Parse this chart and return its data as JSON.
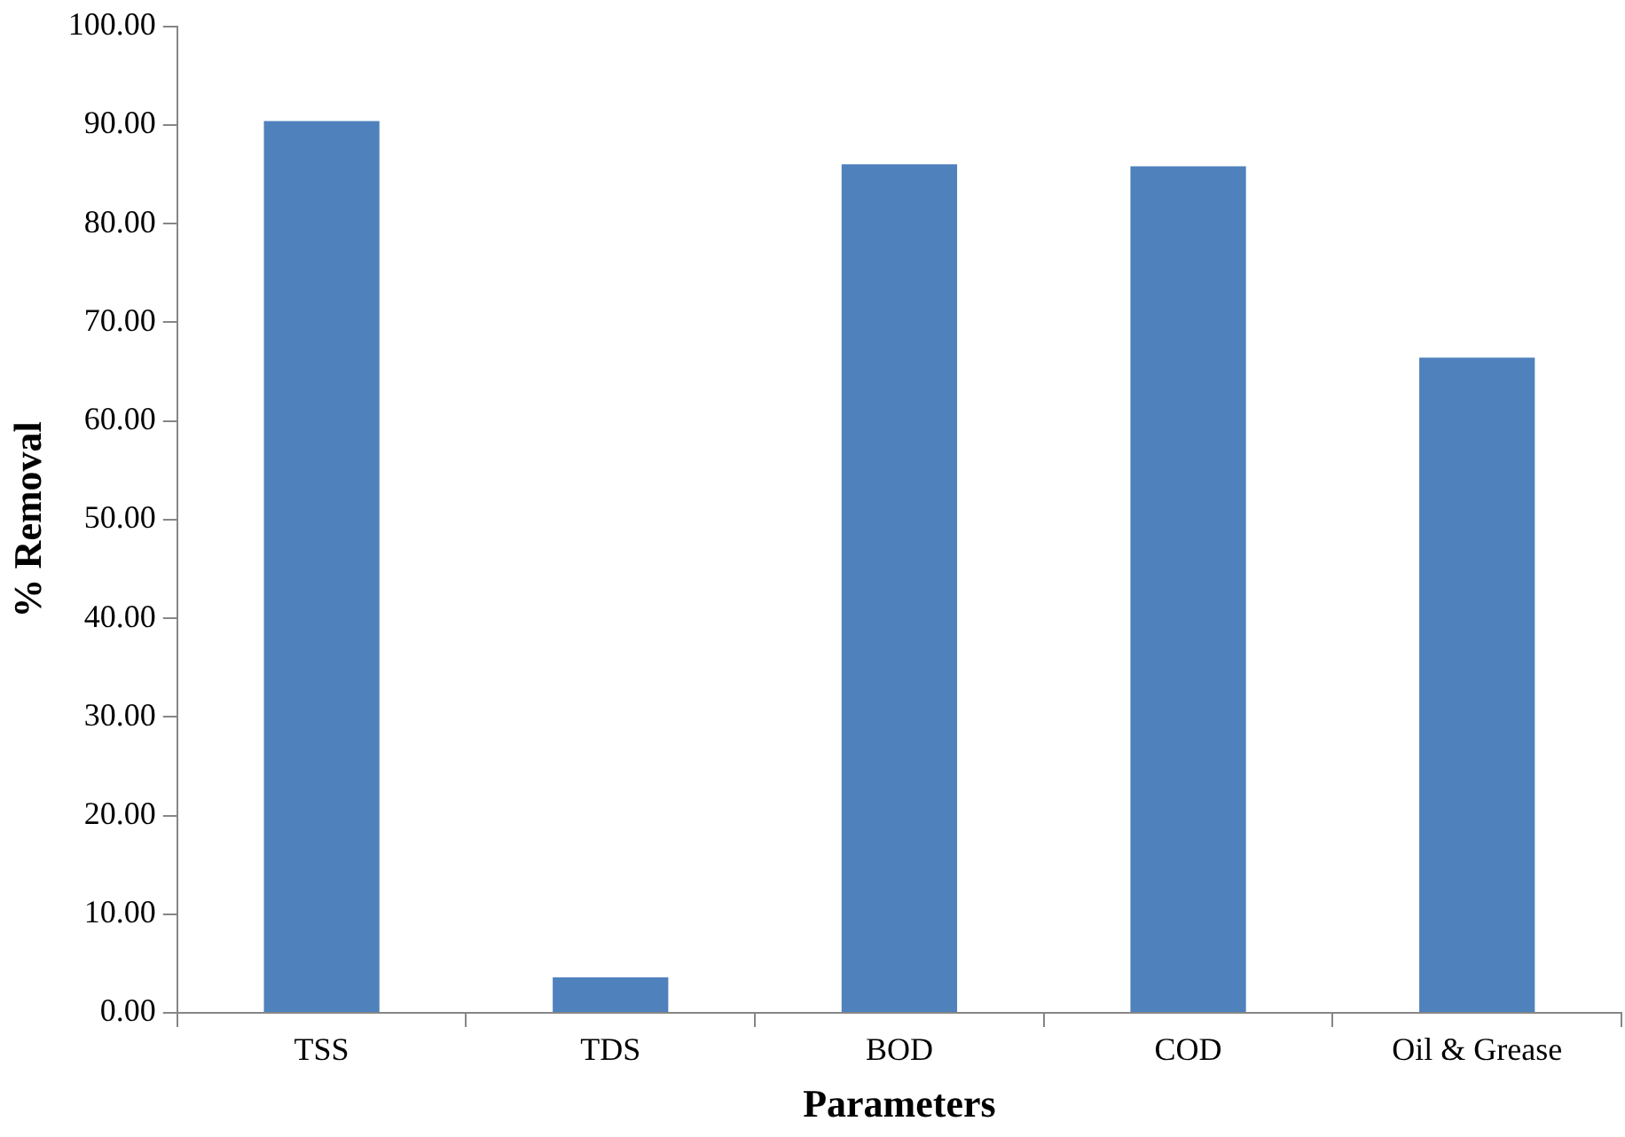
{
  "chart_data": {
    "type": "bar",
    "xlabel": "Parameters",
    "ylabel": "% Removal",
    "categories": [
      "TSS",
      "TDS",
      "BOD",
      "COD",
      "Oil & Grease"
    ],
    "values": [
      90.4,
      3.6,
      86.0,
      85.8,
      66.4
    ],
    "color": "#4f81bd",
    "ylim": [
      0,
      100
    ],
    "yticks": [
      {
        "value": 0,
        "label": "0.00"
      },
      {
        "value": 10,
        "label": "10.00"
      },
      {
        "value": 20,
        "label": "20.00"
      },
      {
        "value": 30,
        "label": "30.00"
      },
      {
        "value": 40,
        "label": "40.00"
      },
      {
        "value": 50,
        "label": "50.00"
      },
      {
        "value": 60,
        "label": "60.00"
      },
      {
        "value": 70,
        "label": "70.00"
      },
      {
        "value": 80,
        "label": "80.00"
      },
      {
        "value": 90,
        "label": "90.00"
      },
      {
        "value": 100,
        "label": "100.00"
      }
    ],
    "grid": false,
    "legend": false
  }
}
